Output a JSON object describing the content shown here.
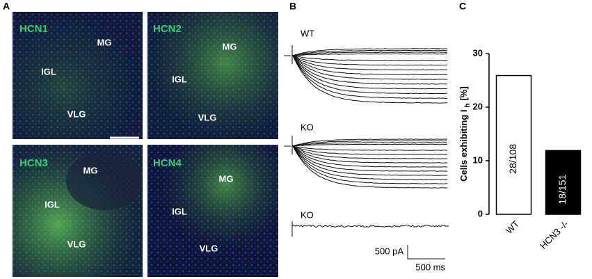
{
  "panel_a": {
    "letter": "A",
    "images": [
      {
        "name": "HCN1",
        "regions": [
          "MG",
          "IGL",
          "VLG"
        ]
      },
      {
        "name": "HCN2",
        "regions": [
          "MG",
          "IGL",
          "VLG"
        ]
      },
      {
        "name": "HCN3",
        "regions": [
          "MG",
          "IGL",
          "VLG"
        ]
      },
      {
        "name": "HCN4",
        "regions": [
          "MG",
          "IGL",
          "VLG"
        ]
      }
    ]
  },
  "panel_b": {
    "letter": "B",
    "traces": [
      "WT",
      "KO",
      "KO"
    ],
    "scale_current": "500 pA",
    "scale_time": "500 ms"
  },
  "panel_c": {
    "letter": "C",
    "chart_data": {
      "type": "bar",
      "ylabel": [
        "Cells exhibiting I",
        "h",
        "[%]"
      ],
      "categories": [
        "WT",
        "HCN3 -/-"
      ],
      "values": [
        25.9,
        11.9
      ],
      "value_labels": [
        "28/108",
        "18/151"
      ],
      "colors": [
        "#ffffff",
        "#000000"
      ],
      "ylim": [
        0,
        30
      ],
      "yticks": [
        0,
        10,
        20,
        30
      ]
    }
  }
}
